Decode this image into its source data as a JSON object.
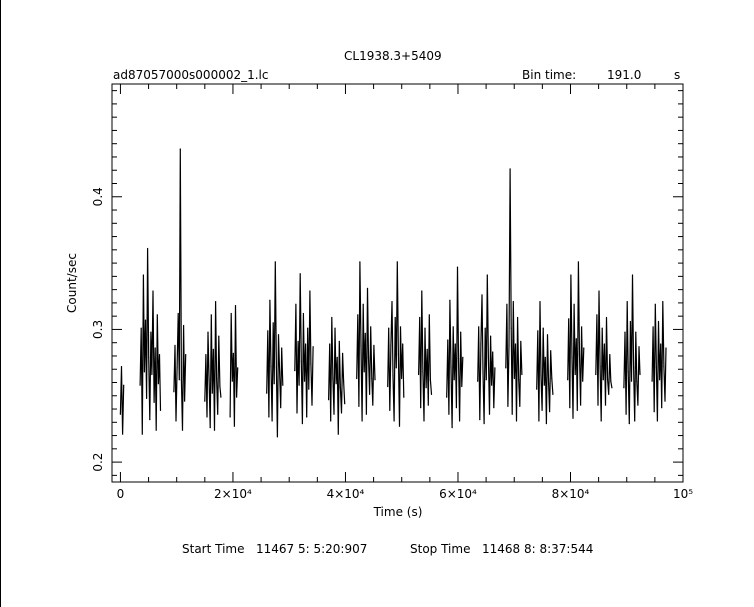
{
  "chart_data": {
    "type": "line",
    "title": "CL1938.3+5409",
    "file_label": "ad87057000s000002_1.lc",
    "bin_time_label": "Bin time:",
    "bin_time_value": "191.0",
    "bin_time_unit": "s",
    "xlabel": "Time (s)",
    "ylabel": "Count/sec",
    "xlim": [
      -1500,
      100000
    ],
    "ylim": [
      0.185,
      0.485
    ],
    "x_ticks": [
      {
        "value": 0,
        "label": "0"
      },
      {
        "value": 20000,
        "label": "2×10⁴"
      },
      {
        "value": 40000,
        "label": "4×10⁴"
      },
      {
        "value": 60000,
        "label": "6×10⁴"
      },
      {
        "value": 80000,
        "label": "8×10⁴"
      },
      {
        "value": 100000,
        "label": "10⁵"
      }
    ],
    "y_ticks": [
      {
        "value": 0.2,
        "label": "0.2"
      },
      {
        "value": 0.3,
        "label": "0.3"
      },
      {
        "value": 0.4,
        "label": "0.4"
      }
    ],
    "grid": false,
    "legend": "none",
    "series": [
      {
        "segments": [
          {
            "x": [
              0,
              191,
              382,
              573
            ],
            "y": [
              0.236,
              0.272,
              0.221,
              0.258
            ]
          },
          {
            "x": [
              3500,
              3691,
              3882,
              4073,
              4264,
              4455,
              4646,
              4837,
              5028,
              5219,
              5410,
              5601,
              5792,
              5983,
              6174,
              6365,
              6556,
              6747,
              6938,
              7129
            ],
            "y": [
              0.258,
              0.301,
              0.221,
              0.341,
              0.268,
              0.307,
              0.248,
              0.361,
              0.279,
              0.232,
              0.298,
              0.266,
              0.329,
              0.245,
              0.286,
              0.224,
              0.311,
              0.259,
              0.281,
              0.239
            ]
          },
          {
            "x": [
              9500,
              9691,
              9882,
              10073,
              10264,
              10455,
              10646,
              10837,
              11028,
              11219,
              11410,
              11601
            ],
            "y": [
              0.253,
              0.288,
              0.231,
              0.271,
              0.312,
              0.262,
              0.436,
              0.262,
              0.224,
              0.303,
              0.246,
              0.281
            ]
          },
          {
            "x": [
              15000,
              15191,
              15382,
              15573,
              15764,
              15955,
              16146,
              16337,
              16528,
              16719,
              16910,
              17101,
              17292,
              17483,
              17674,
              17865
            ],
            "y": [
              0.246,
              0.281,
              0.234,
              0.298,
              0.262,
              0.226,
              0.311,
              0.252,
              0.285,
              0.224,
              0.321,
              0.263,
              0.236,
              0.295,
              0.257,
              0.249
            ]
          },
          {
            "x": [
              19500,
              19691,
              19882,
              20073,
              20264,
              20455,
              20646,
              20837
            ],
            "y": [
              0.234,
              0.312,
              0.261,
              0.282,
              0.227,
              0.318,
              0.249,
              0.271
            ]
          },
          {
            "x": [
              26000,
              26191,
              26382,
              26573,
              26764,
              26955,
              27146,
              27337,
              27528,
              27719,
              27910,
              28101,
              28292,
              28483,
              28674,
              28865
            ],
            "y": [
              0.252,
              0.299,
              0.234,
              0.322,
              0.272,
              0.231,
              0.305,
              0.259,
              0.351,
              0.271,
              0.219,
              0.296,
              0.268,
              0.241,
              0.286,
              0.258
            ]
          },
          {
            "x": [
              31000,
              31191,
              31382,
              31573,
              31764,
              31955,
              32146,
              32337,
              32528,
              32719,
              32910,
              33101,
              33292,
              33483,
              33674,
              33865,
              34056,
              34247
            ],
            "y": [
              0.269,
              0.319,
              0.237,
              0.291,
              0.258,
              0.342,
              0.276,
              0.229,
              0.312,
              0.261,
              0.289,
              0.234,
              0.301,
              0.255,
              0.329,
              0.274,
              0.243,
              0.287
            ]
          },
          {
            "x": [
              37000,
              37191,
              37382,
              37573,
              37764,
              37955,
              38146,
              38337,
              38528,
              38719,
              38910,
              39101,
              39292,
              39483,
              39674,
              39865
            ],
            "y": [
              0.247,
              0.289,
              0.231,
              0.309,
              0.263,
              0.236,
              0.301,
              0.259,
              0.279,
              0.221,
              0.291,
              0.256,
              0.237,
              0.282,
              0.261,
              0.244
            ]
          },
          {
            "x": [
              42000,
              42191,
              42382,
              42573,
              42764,
              42955,
              43146,
              43337,
              43528,
              43719,
              43910,
              44101,
              44292,
              44483,
              44674,
              44865,
              45056,
              45247
            ],
            "y": [
              0.263,
              0.311,
              0.242,
              0.351,
              0.288,
              0.231,
              0.319,
              0.268,
              0.297,
              0.236,
              0.331,
              0.279,
              0.251,
              0.302,
              0.263,
              0.243,
              0.288,
              0.262
            ]
          },
          {
            "x": [
              47500,
              47691,
              47882,
              48073,
              48264,
              48455,
              48646,
              48837,
              49028,
              49219,
              49410,
              49601,
              49792,
              49983,
              50174,
              50365
            ],
            "y": [
              0.257,
              0.301,
              0.239,
              0.288,
              0.321,
              0.265,
              0.231,
              0.309,
              0.271,
              0.351,
              0.281,
              0.227,
              0.302,
              0.263,
              0.289,
              0.249
            ]
          },
          {
            "x": [
              53000,
              53191,
              53382,
              53573,
              53764,
              53955,
              54146,
              54337,
              54528,
              54719,
              54910,
              55101,
              55292
            ],
            "y": [
              0.266,
              0.309,
              0.241,
              0.329,
              0.268,
              0.231,
              0.301,
              0.256,
              0.285,
              0.243,
              0.311,
              0.262,
              0.251
            ]
          },
          {
            "x": [
              58000,
              58191,
              58382,
              58573,
              58764,
              58955,
              59146,
              59337,
              59528,
              59719,
              59910,
              60101,
              60292,
              60483,
              60674,
              60865
            ],
            "y": [
              0.249,
              0.292,
              0.236,
              0.322,
              0.271,
              0.226,
              0.302,
              0.262,
              0.289,
              0.241,
              0.347,
              0.278,
              0.231,
              0.298,
              0.257,
              0.279
            ]
          },
          {
            "x": [
              63500,
              63691,
              63882,
              64073,
              64264,
              64455,
              64646,
              64837,
              65028,
              65219,
              65410,
              65601,
              65792,
              65983,
              66174,
              66365,
              66556
            ],
            "y": [
              0.261,
              0.302,
              0.232,
              0.289,
              0.326,
              0.268,
              0.229,
              0.301,
              0.262,
              0.341,
              0.279,
              0.236,
              0.295,
              0.258,
              0.283,
              0.241,
              0.271
            ]
          },
          {
            "x": [
              68500,
              68691,
              68882,
              69073,
              69264,
              69455,
              69646,
              69837,
              70028,
              70219,
              70410,
              70601,
              70792,
              70983,
              71174,
              71365
            ],
            "y": [
              0.271,
              0.319,
              0.242,
              0.288,
              0.421,
              0.301,
              0.236,
              0.321,
              0.263,
              0.289,
              0.231,
              0.309,
              0.262,
              0.242,
              0.291,
              0.266
            ]
          },
          {
            "x": [
              74000,
              74191,
              74382,
              74573,
              74764,
              74955,
              75146,
              75337,
              75528,
              75719,
              75910,
              76101,
              76292,
              76483,
              76674,
              76865
            ],
            "y": [
              0.255,
              0.299,
              0.231,
              0.321,
              0.265,
              0.239,
              0.301,
              0.258,
              0.279,
              0.229,
              0.296,
              0.259,
              0.238,
              0.284,
              0.263,
              0.251
            ]
          },
          {
            "x": [
              79500,
              79691,
              79882,
              80073,
              80264,
              80455,
              80646,
              80837,
              81028,
              81219,
              81410,
              81601,
              81792,
              81983,
              82174,
              82365
            ],
            "y": [
              0.262,
              0.308,
              0.241,
              0.341,
              0.279,
              0.233,
              0.319,
              0.266,
              0.293,
              0.239,
              0.351,
              0.281,
              0.243,
              0.302,
              0.261,
              0.286
            ]
          },
          {
            "x": [
              84500,
              84691,
              84882,
              85073,
              85264,
              85455,
              85646,
              85837,
              86028,
              86219,
              86410,
              86601,
              86792,
              86983,
              87174,
              87365
            ],
            "y": [
              0.266,
              0.311,
              0.243,
              0.329,
              0.272,
              0.231,
              0.301,
              0.262,
              0.289,
              0.243,
              0.309,
              0.262,
              0.251,
              0.281,
              0.261,
              0.256
            ]
          },
          {
            "x": [
              89500,
              89691,
              89882,
              90073,
              90264,
              90455,
              90646,
              90837,
              91028,
              91219,
              91410,
              91601,
              91792,
              91983,
              92174,
              92365
            ],
            "y": [
              0.256,
              0.298,
              0.236,
              0.321,
              0.268,
              0.229,
              0.306,
              0.261,
              0.341,
              0.271,
              0.231,
              0.298,
              0.261,
              0.243,
              0.287,
              0.266
            ]
          },
          {
            "x": [
              94500,
              94691,
              94882,
              95073,
              95264,
              95455,
              95646,
              95837,
              96028,
              96219,
              96410,
              96601,
              96792,
              96983
            ],
            "y": [
              0.261,
              0.302,
              0.238,
              0.319,
              0.271,
              0.231,
              0.306,
              0.262,
              0.289,
              0.241,
              0.321,
              0.272,
              0.246,
              0.286
            ]
          }
        ]
      }
    ]
  },
  "footer": {
    "start_label": "Start Time",
    "start_value": "11467  5: 5:20:907",
    "stop_label": "Stop Time",
    "stop_value": "11468  8: 8:37:544"
  }
}
